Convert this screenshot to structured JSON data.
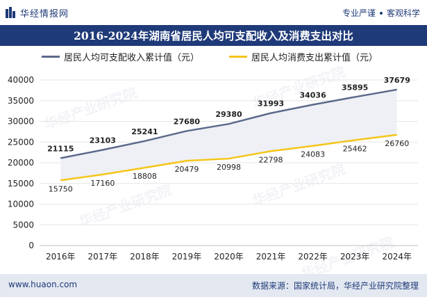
{
  "header": {
    "brand": "华经情报网",
    "slogan_1": "专业严谨",
    "slogan_2": "客观科学"
  },
  "watermark": "华经产业研究院",
  "chart_data": {
    "type": "line",
    "title": "2016-2024年湖南省居民人均可支配收入及消费支出对比",
    "categories": [
      "2016年",
      "2017年",
      "2018年",
      "2019年",
      "2020年",
      "2021年",
      "2022年",
      "2023年",
      "2024年"
    ],
    "series": [
      {
        "name": "居民人均可支配收入累计值（元）",
        "color": "#5b6a8a",
        "values": [
          21115,
          23103,
          25241,
          27680,
          29380,
          31993,
          34036,
          35895,
          37679
        ]
      },
      {
        "name": "居民人均消费支出累计值（元）",
        "color": "#f5c518",
        "values": [
          15750,
          17160,
          18808,
          20479,
          20998,
          22798,
          24083,
          25462,
          26760
        ]
      }
    ],
    "yticks": [
      0,
      5000,
      10000,
      15000,
      20000,
      25000,
      30000,
      35000,
      40000
    ],
    "ylim": [
      0,
      40000
    ],
    "xlabel": "",
    "ylabel": "",
    "fill_between": true,
    "legend": "top"
  },
  "footer": {
    "website": "www.huaon.com",
    "source": "数据来源：国家统计局，华经产业研究院整理"
  }
}
